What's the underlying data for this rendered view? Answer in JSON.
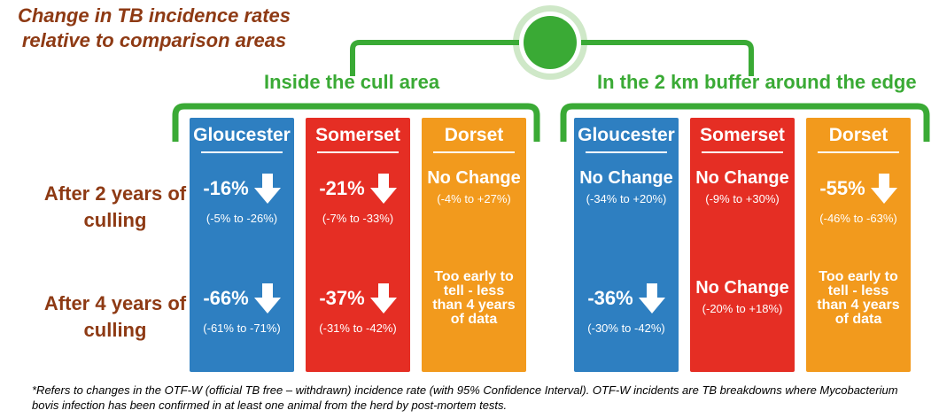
{
  "title": "Change in TB incidence rates relative to comparison areas",
  "colors": {
    "green": "#3aaa35",
    "blue": "#2e7fc1",
    "red": "#e52e24",
    "orange": "#f29a1d",
    "brown": "#8e3a14"
  },
  "groups": [
    {
      "label": "Inside the cull area"
    },
    {
      "label": "In the 2 km buffer around the edge"
    }
  ],
  "rows": [
    {
      "label": "After 2 years of culling"
    },
    {
      "label": "After 4 years of culling"
    }
  ],
  "columns": [
    {
      "name": "Gloucester",
      "color": "blue",
      "cells": [
        {
          "type": "change",
          "value": "-16%",
          "ci": "(-5% to -26%)"
        },
        {
          "type": "change",
          "value": "-66%",
          "ci": "(-61% to -71%)"
        }
      ]
    },
    {
      "name": "Somerset",
      "color": "red",
      "cells": [
        {
          "type": "change",
          "value": "-21%",
          "ci": "(-7% to -33%)"
        },
        {
          "type": "change",
          "value": "-37%",
          "ci": "(-31% to -42%)"
        }
      ]
    },
    {
      "name": "Dorset",
      "color": "orange",
      "cells": [
        {
          "type": "nochange",
          "value": "No Change",
          "ci": "(-4% to +27%)"
        },
        {
          "type": "early",
          "value": "Too early to tell - less than 4 years of data"
        }
      ]
    },
    {
      "name": "Gloucester",
      "color": "blue",
      "cells": [
        {
          "type": "nochange",
          "value": "No Change",
          "ci": "(-34% to +20%)"
        },
        {
          "type": "change",
          "value": "-36%",
          "ci": "(-30% to -42%)"
        }
      ]
    },
    {
      "name": "Somerset",
      "color": "red",
      "cells": [
        {
          "type": "nochange",
          "value": "No Change",
          "ci": "(-9% to +30%)"
        },
        {
          "type": "nochange",
          "value": "No Change",
          "ci": "(-20% to +18%)"
        }
      ]
    },
    {
      "name": "Dorset",
      "color": "orange",
      "cells": [
        {
          "type": "change",
          "value": "-55%",
          "ci": "(-46% to -63%)"
        },
        {
          "type": "early",
          "value": "Too early to tell - less than 4 years of data"
        }
      ]
    }
  ],
  "footnote": "*Refers to changes in the OTF-W (official TB free – withdrawn) incidence rate (with 95% Confidence Interval). OTF-W incidents are TB breakdowns where Mycobacterium bovis infection has been confirmed in at least one animal from the herd by post-mortem tests."
}
